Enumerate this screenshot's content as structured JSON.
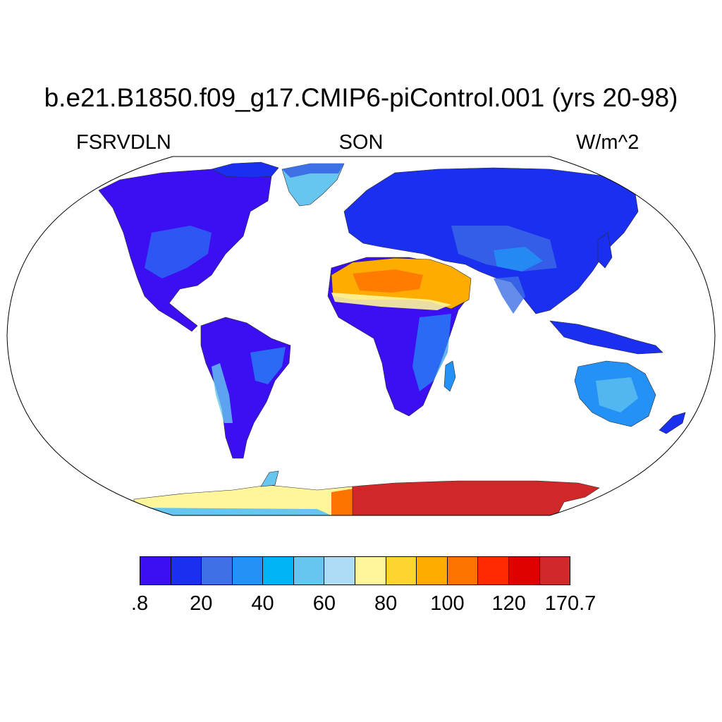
{
  "title": "b.e21.B1850.f09_g17.CMIP6-piControl.001 (yrs 20-98)",
  "left_label": "FSRVDLN",
  "center_label": "SON",
  "right_label": "W/m^2",
  "colorbar": {
    "colors": [
      "#3b0ff2",
      "#1a2ff0",
      "#3d6fe6",
      "#2391f5",
      "#00b4f5",
      "#66c6f0",
      "#aedcf5",
      "#fff59a",
      "#ffd430",
      "#ffac00",
      "#ff7300",
      "#ff2a00",
      "#e00000",
      "#d02828"
    ],
    "labels": [
      ".8",
      "20",
      "40",
      "60",
      "80",
      "100",
      "120",
      "170.7"
    ]
  },
  "regions": [
    {
      "name": "north-america",
      "color": "#3b0ff2"
    },
    {
      "name": "greenland",
      "color": "#66c6f0"
    },
    {
      "name": "south-america",
      "color": "#3b0ff2"
    },
    {
      "name": "africa",
      "color": "#3b0ff2"
    },
    {
      "name": "eurasia",
      "color": "#1a2ff0"
    },
    {
      "name": "australia",
      "color": "#2391f5"
    },
    {
      "name": "sahara-arabia",
      "color": "#ffac00"
    },
    {
      "name": "antarctica-west",
      "color": "#fff59a"
    },
    {
      "name": "antarctica-east",
      "color": "#d02828"
    }
  ]
}
